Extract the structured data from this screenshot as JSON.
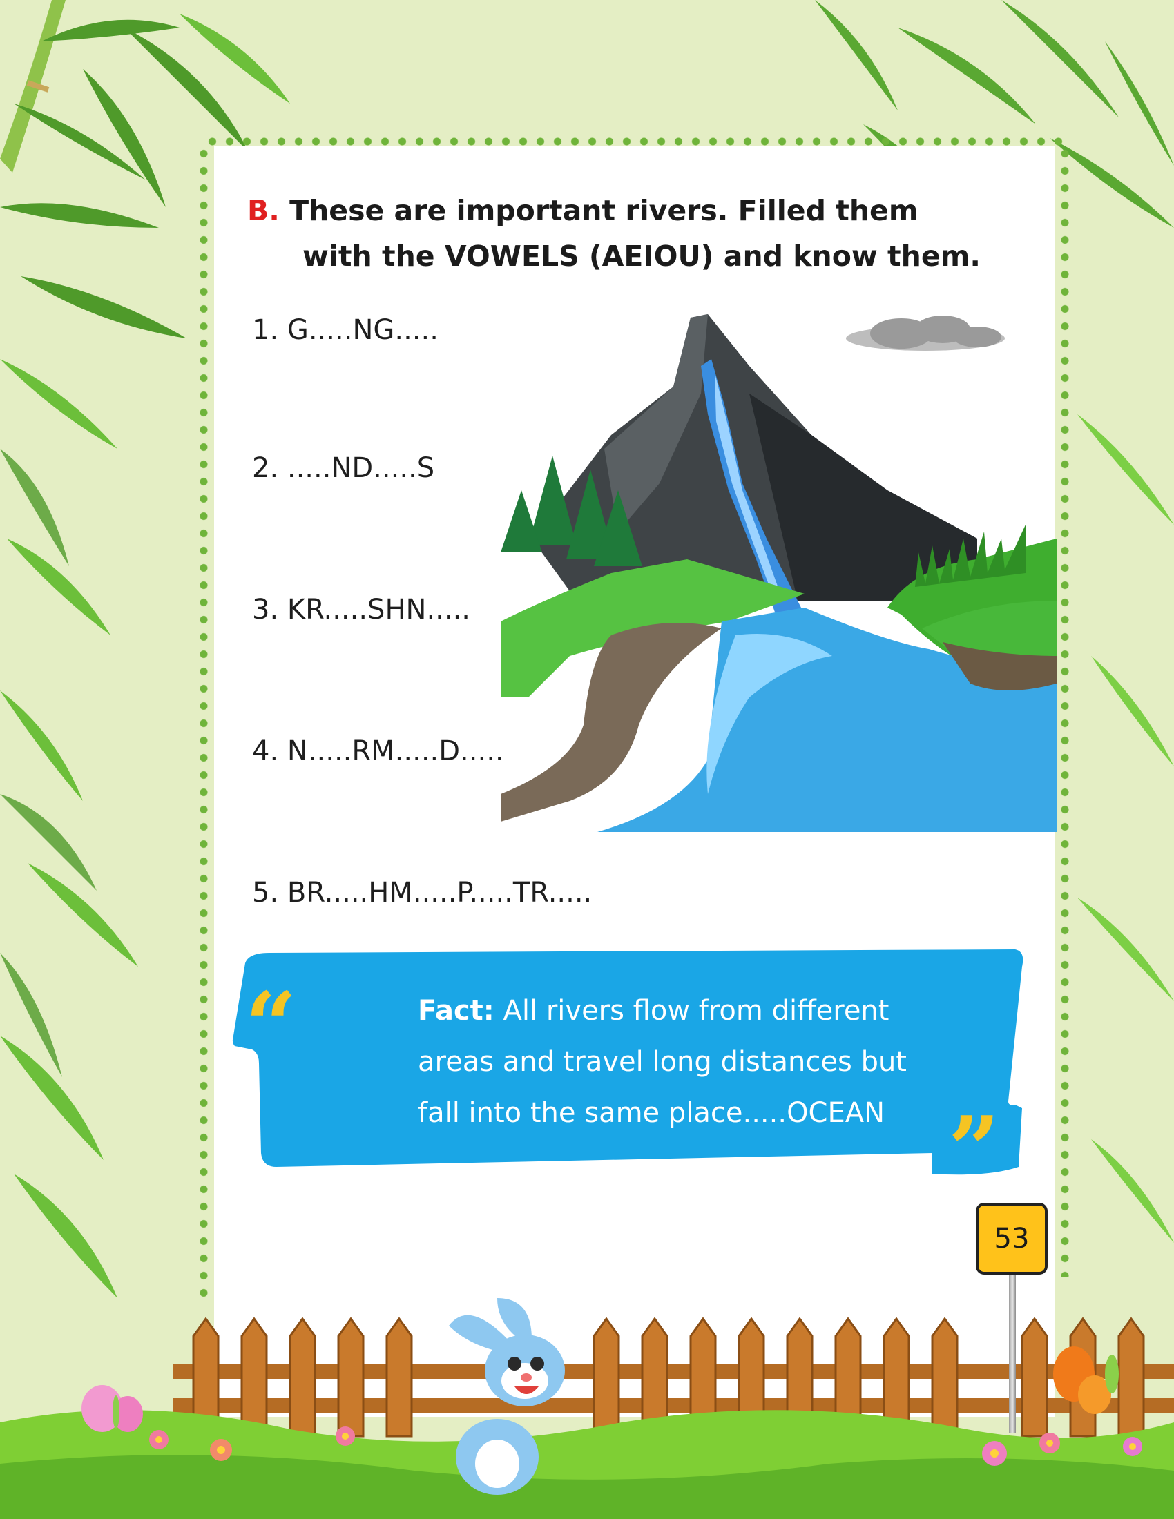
{
  "exercise": {
    "letter": "B.",
    "instruction_line1": "These are important rivers. Filled them",
    "instruction_line2": "with the VOWELS (AEIOU) and know them."
  },
  "rivers": [
    "1. G.....NG.....",
    "2. .....ND.....S",
    "3. KR.....SHN.....",
    "4. N.....RM.....D.....",
    "5. BR.....HM.....P.....TR....."
  ],
  "fact": {
    "label": "Fact:",
    "line1": "All rivers flow from different",
    "line2": "areas and travel long distances but",
    "line3": "fall into the same place.....OCEAN",
    "open_quote": "“",
    "close_quote": "”"
  },
  "page_number": "53",
  "colors": {
    "accent_letter": "#e02020",
    "fact_bubble": "#1aa6e6",
    "quote_marks": "#f5c423",
    "dot_border": "#6fb43a",
    "page_background": "#e4eec4"
  },
  "icons": [
    "bamboo-icon",
    "mountain-waterfall-illustration",
    "bunny-icon",
    "butterfly-icon",
    "flower-icon",
    "fence-icon",
    "cloud-icon",
    "pine-tree-icon"
  ]
}
